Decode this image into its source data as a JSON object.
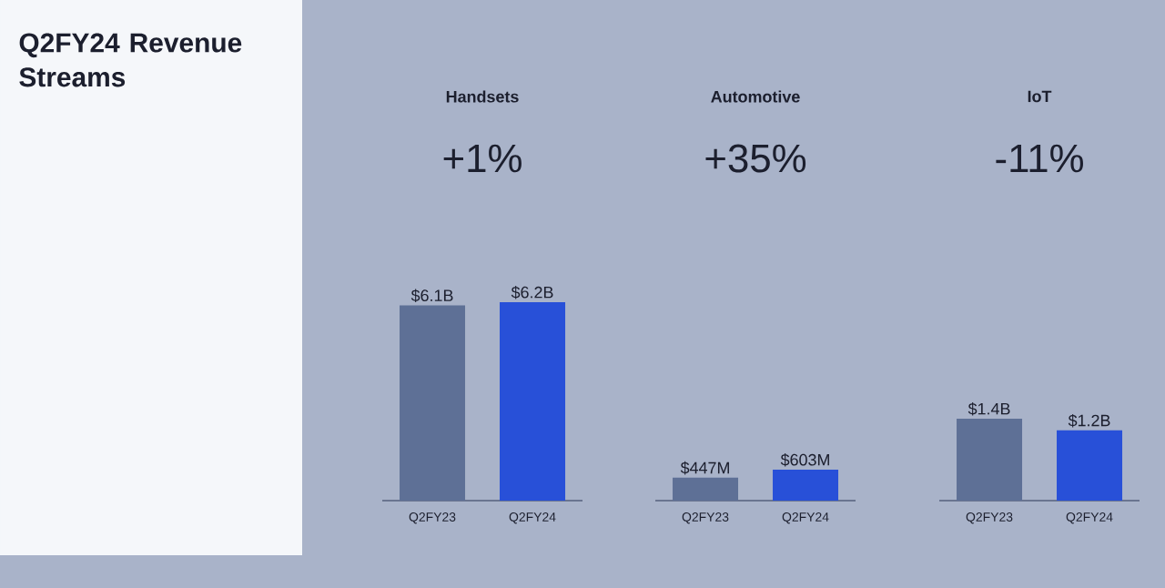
{
  "chart_data": [
    {
      "type": "other",
      "title": "Q2FY24 Revenue Streams"
    },
    {
      "type": "bar",
      "title": "Handsets",
      "subtitle": "+1%",
      "categories": [
        "Q2FY23",
        "Q2FY24"
      ],
      "values": [
        6.1,
        6.2
      ],
      "value_labels": [
        "$6.1B",
        "$6.2B"
      ],
      "colors": [
        "#5e7096",
        "#2850d8"
      ]
    },
    {
      "type": "bar",
      "title": "Automotive",
      "subtitle": "+35%",
      "categories": [
        "Q2FY23",
        "Q2FY24"
      ],
      "values": [
        447,
        603
      ],
      "value_labels": [
        "$447M",
        "$603M"
      ],
      "colors": [
        "#5e7096",
        "#2850d8"
      ]
    },
    {
      "type": "bar",
      "title": "IoT",
      "subtitle": "-11%",
      "categories": [
        "Q2FY23",
        "Q2FY24"
      ],
      "values": [
        1.4,
        1.2
      ],
      "value_labels": [
        "$1.4B",
        "$1.2B"
      ],
      "colors": [
        "#5e7096",
        "#2850d8"
      ]
    }
  ]
}
